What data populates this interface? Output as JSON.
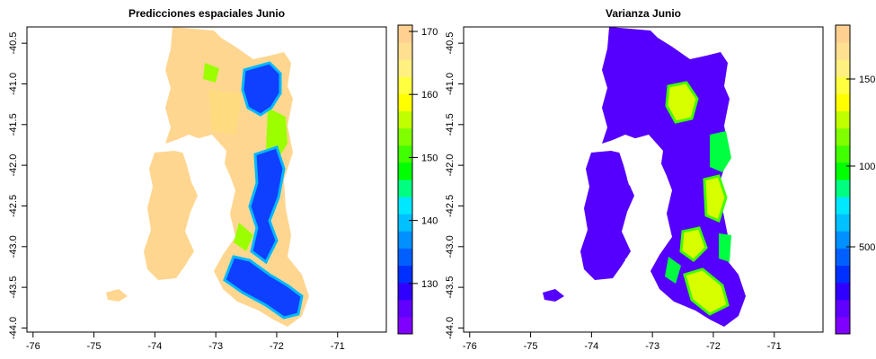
{
  "chart_data": [
    {
      "type": "heatmap",
      "title": "Predicciones espaciales Junio",
      "xlabel": "",
      "ylabel": "",
      "xlim": [
        -76.1,
        -70.2
      ],
      "ylim": [
        -44.05,
        -40.3
      ],
      "x_ticks": [
        "-76",
        "-75",
        "-74",
        "-73",
        "-72",
        "-71"
      ],
      "y_ticks": [
        "-44.0",
        "-43.5",
        "-43.0",
        "-42.5",
        "-42.0",
        "-41.5",
        "-41.0",
        "-40.5"
      ],
      "colorbar": {
        "range": [
          122,
          171
        ],
        "ticks": [
          "130",
          "140",
          "150",
          "160",
          "170"
        ],
        "colors": [
          "#8000ff",
          "#6000ff",
          "#3000ff",
          "#0030ff",
          "#0060ff",
          "#0090ff",
          "#00c0ff",
          "#00e8ff",
          "#00ff80",
          "#00ff00",
          "#40ff00",
          "#80ff00",
          "#c0ff00",
          "#ffff00",
          "#ffff40",
          "#fff080",
          "#ffe090",
          "#ffd090"
        ]
      }
    },
    {
      "type": "heatmap",
      "title": "Varianza Junio",
      "xlabel": "",
      "ylabel": "",
      "xlim": [
        -76.1,
        -70.2
      ],
      "ylim": [
        -44.05,
        -40.3
      ],
      "x_ticks": [
        "-76",
        "-75",
        "-74",
        "-73",
        "-72",
        "-71"
      ],
      "y_ticks": [
        "-44.0",
        "-43.5",
        "-43.0",
        "-42.5",
        "-42.0",
        "-41.5",
        "-41.0",
        "-40.5"
      ],
      "colorbar": {
        "range": [
          0,
          1800
        ],
        "ticks": [
          "500",
          "100",
          "150"
        ],
        "colors": [
          "#8000ff",
          "#6000ff",
          "#3000ff",
          "#0030ff",
          "#0060ff",
          "#0090ff",
          "#00c0ff",
          "#00e8ff",
          "#00ff80",
          "#00ff00",
          "#40ff00",
          "#80ff00",
          "#c0ff00",
          "#ffff00",
          "#ffff40",
          "#fff080",
          "#ffe090",
          "#ffd090"
        ]
      }
    }
  ]
}
